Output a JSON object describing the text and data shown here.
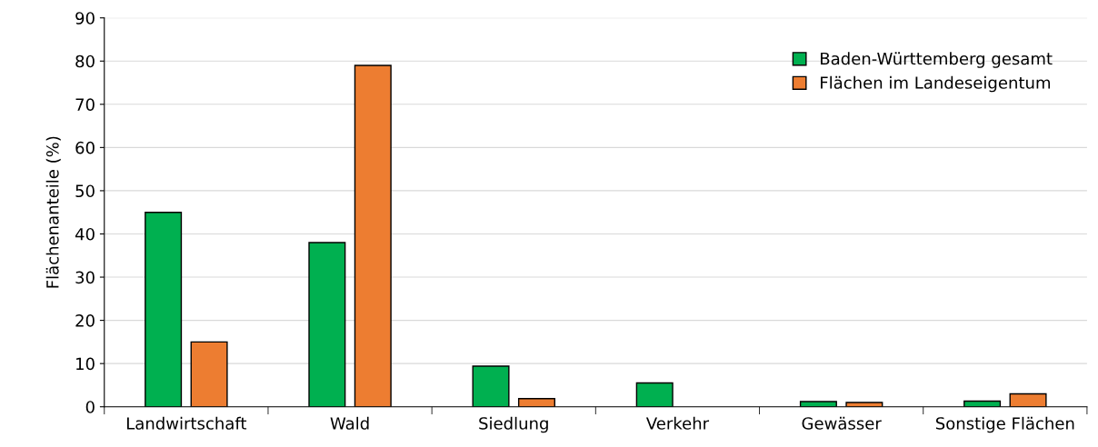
{
  "chart_data": {
    "type": "bar",
    "ylabel": "Flächenanteile (%)",
    "categories": [
      "Landwirtschaft",
      "Wald",
      "Siedlung",
      "Verkehr",
      "Gewässer",
      "Sonstige Flächen"
    ],
    "series": [
      {
        "name": "Baden-Württemberg gesamt",
        "color": "#00b050",
        "values": [
          45,
          38,
          9.4,
          5.5,
          1.2,
          1.3
        ]
      },
      {
        "name": "Flächen im Landeseigentum",
        "color": "#ed7d31",
        "values": [
          15,
          79,
          1.9,
          null,
          1.0,
          3.0
        ]
      }
    ],
    "ylim": [
      0,
      90
    ],
    "yticks": [
      0,
      10,
      20,
      30,
      40,
      50,
      60,
      70,
      80,
      90
    ],
    "grid": "y",
    "legend": "top right"
  }
}
